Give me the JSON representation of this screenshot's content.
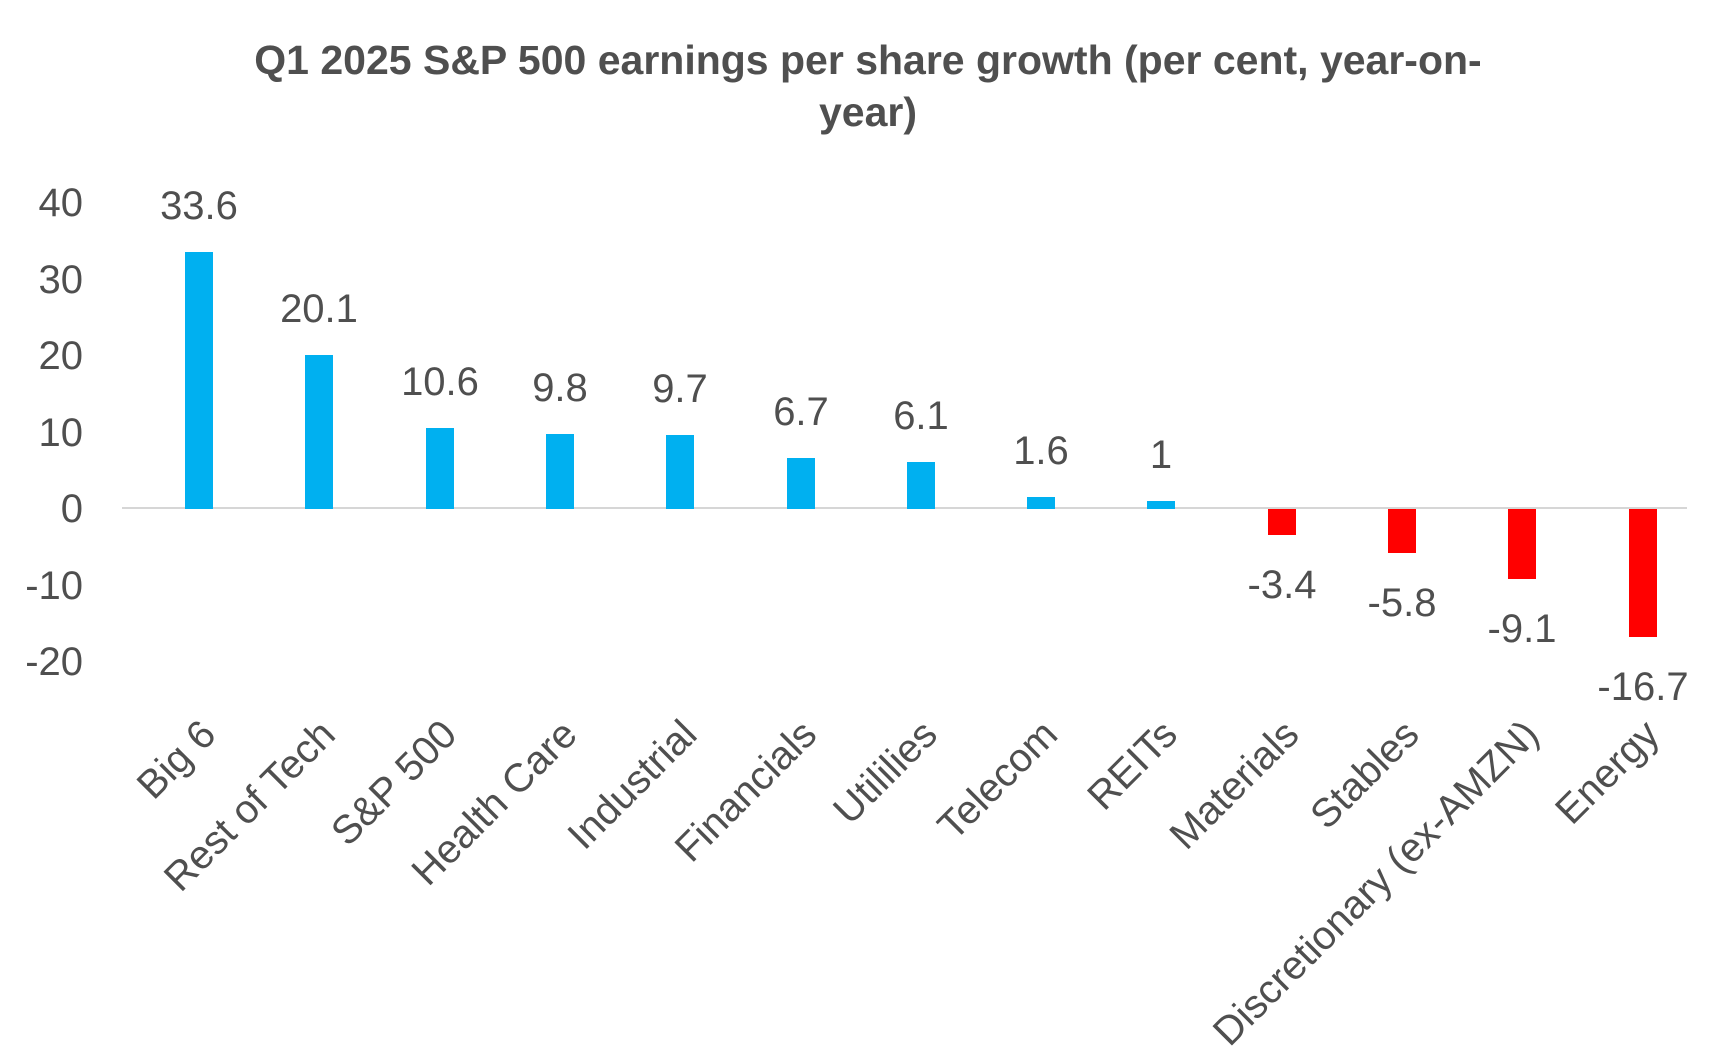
{
  "chart_data": {
    "type": "bar",
    "title": "Q1 2025 S&P 500 earnings per share growth (per cent, year-on-year)",
    "categories": [
      "Big 6",
      "Rest of Tech",
      "S&P 500",
      "Health Care",
      "Industrial",
      "Financials",
      "Utililies",
      "Telecom",
      "REITs",
      "Materials",
      "Stables",
      "Discretionary (ex-AMZN)",
      "Energy"
    ],
    "values": [
      33.6,
      20.1,
      10.6,
      9.8,
      9.7,
      6.7,
      6.1,
      1.6,
      1,
      -3.4,
      -5.8,
      -9.1,
      -16.7
    ],
    "value_labels": [
      "33.6",
      "20.1",
      "10.6",
      "9.8",
      "9.7",
      "6.7",
      "6.1",
      "1.6",
      "1",
      "-3.4",
      "-5.8",
      "-9.1",
      "-16.7"
    ],
    "yticks": [
      "40",
      "30",
      "20",
      "10",
      "0",
      "-10",
      "-20"
    ],
    "ytick_values": [
      40,
      30,
      20,
      10,
      0,
      -10,
      -20
    ],
    "ylim": [
      -20,
      40
    ],
    "xlabel": "",
    "ylabel": "",
    "legend": "none",
    "grid": "zero-line-only",
    "bar_positive_color": "#00B0F0",
    "bar_negative_color": "#FF0000",
    "axis_line_color": "#D6D6D6",
    "text_color": "#4f4f4f"
  }
}
